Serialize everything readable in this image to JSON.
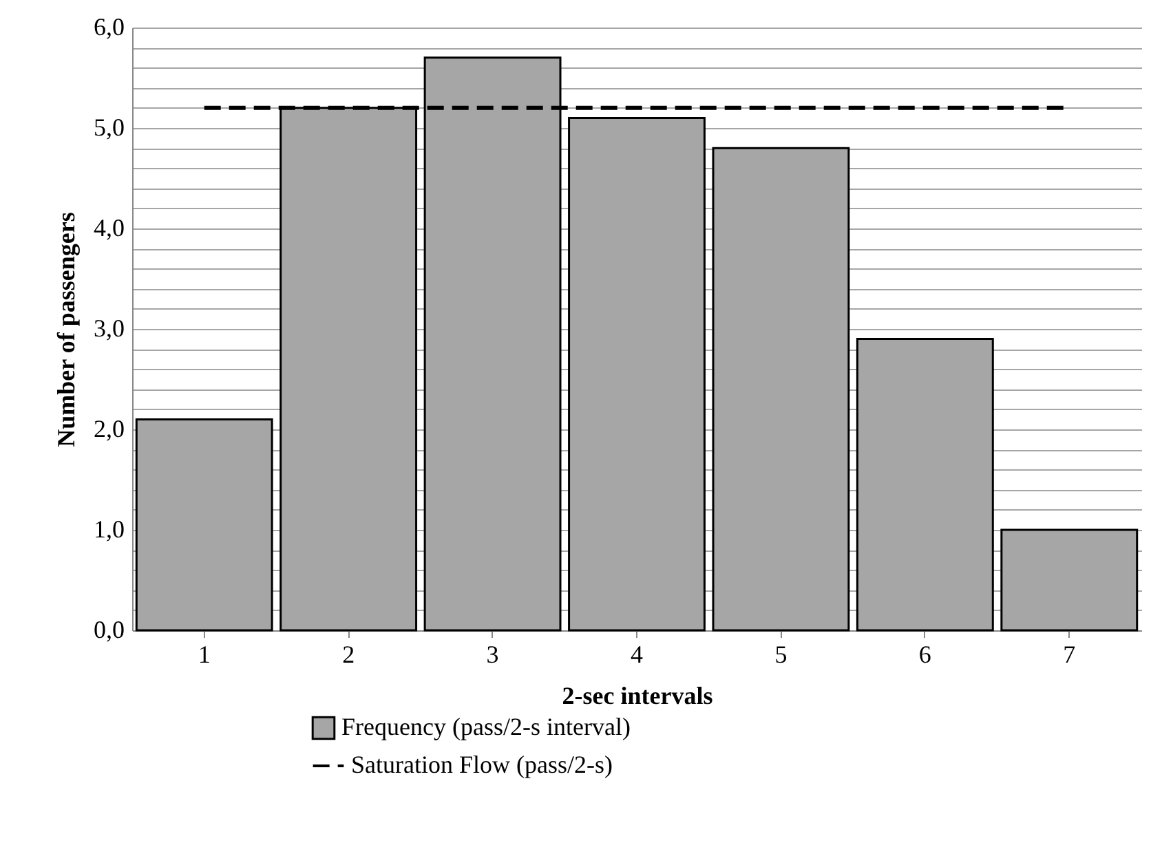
{
  "chart_data": {
    "type": "bar",
    "xlabel": "2-sec intervals",
    "ylabel": "Number of passengers",
    "categories": [
      "1",
      "2",
      "3",
      "4",
      "5",
      "6",
      "7"
    ],
    "series": [
      {
        "name": "Frequency (pass/2-s interval)",
        "color": "#a6a6a6",
        "values": [
          2.1,
          5.2,
          5.7,
          5.1,
          4.8,
          2.9,
          1.0
        ]
      },
      {
        "name": "Saturation Flow (pass/2-s)",
        "type": "line",
        "color": "#000000",
        "line_style": "dashed",
        "values": [
          5.2,
          5.2,
          5.2,
          5.2,
          5.2,
          5.2,
          5.2
        ]
      }
    ],
    "ylim": [
      0,
      6
    ],
    "yticks": [
      {
        "value": 0,
        "label": "0,0"
      },
      {
        "value": 0.2,
        "label": null
      },
      {
        "value": 0.4,
        "label": null
      },
      {
        "value": 0.6,
        "label": null
      },
      {
        "value": 0.8,
        "label": null
      },
      {
        "value": 1,
        "label": "1,0"
      },
      {
        "value": 1.2,
        "label": null
      },
      {
        "value": 1.4,
        "label": null
      },
      {
        "value": 1.6,
        "label": null
      },
      {
        "value": 1.8,
        "label": null
      },
      {
        "value": 2,
        "label": "2,0"
      },
      {
        "value": 2.2,
        "label": null
      },
      {
        "value": 2.4,
        "label": null
      },
      {
        "value": 2.6,
        "label": null
      },
      {
        "value": 2.8,
        "label": null
      },
      {
        "value": 3,
        "label": "3,0"
      },
      {
        "value": 3.2,
        "label": null
      },
      {
        "value": 3.4,
        "label": null
      },
      {
        "value": 3.6,
        "label": null
      },
      {
        "value": 3.8,
        "label": null
      },
      {
        "value": 4,
        "label": "4,0"
      },
      {
        "value": 4.2,
        "label": null
      },
      {
        "value": 4.4,
        "label": null
      },
      {
        "value": 4.6,
        "label": null
      },
      {
        "value": 4.8,
        "label": null
      },
      {
        "value": 5,
        "label": "5,0"
      },
      {
        "value": 5.2,
        "label": null
      },
      {
        "value": 5.4,
        "label": null
      },
      {
        "value": 5.6,
        "label": null
      },
      {
        "value": 5.8,
        "label": null
      },
      {
        "value": 6,
        "label": "6,0"
      }
    ],
    "grid": "y",
    "legend": "bottom"
  }
}
